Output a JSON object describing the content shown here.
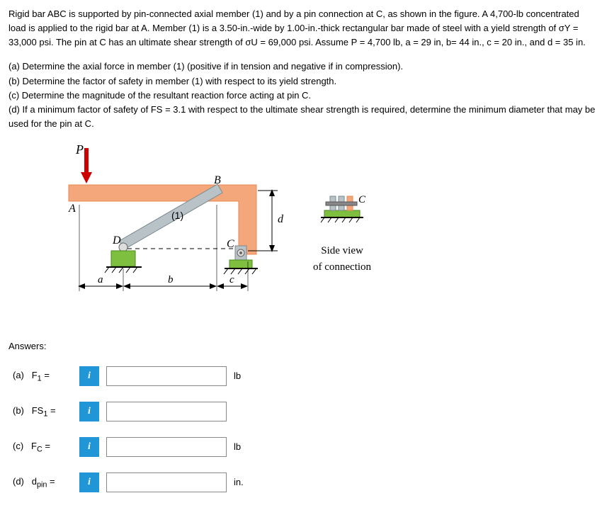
{
  "problem": {
    "p1": "Rigid bar ABC is supported by pin-connected axial member (1) and by a pin connection at C, as shown in the figure. A 4,700-lb concentrated load is applied to the rigid bar at A. Member (1) is a 3.50-in.-wide by 1.00-in.-thick rectangular bar made of steel with a yield strength of σY  =  33,000 psi. The pin at C has an ultimate shear strength of σU  =   69,000 psi. Assume P = 4,700 lb, a = 29 in, b= 44 in., c = 20 in., and d = 35 in.",
    "qa": "(a) Determine the axial force in member (1) (positive if in tension and negative if in compression).",
    "qb": "(b) Determine the factor of safety in member (1) with respect to its yield strength.",
    "qc": "(c) Determine the magnitude of the resultant reaction force acting at pin C.",
    "qd": "(d) If a minimum factor of safety of FS = 3.1 with respect to the ultimate shear strength is required, determine the minimum diameter that may be used for the pin at C."
  },
  "figure": {
    "labels": {
      "P": "P",
      "A": "A",
      "B": "B",
      "C": "C",
      "D": "D",
      "one": "(1)",
      "a": "a",
      "b": "b",
      "c": "c",
      "d": "d"
    },
    "colors": {
      "bar": "#f4a77a",
      "bar_stroke": "#e88a55",
      "member": "#b9c3c7",
      "member_stroke": "#7a8a90",
      "support": "#7fbf3f",
      "pin": "#dddddd",
      "arrow": "#cc0000",
      "dim": "#000000"
    }
  },
  "sideview": {
    "label_c": "C",
    "text1": "Side view",
    "text2": "of connection"
  },
  "answers": {
    "title": "Answers:",
    "rows": [
      {
        "label_html": "(a)&nbsp;&nbsp;&nbsp;F<sub>1</sub> =",
        "unit": "lb",
        "value": ""
      },
      {
        "label_html": "(b)&nbsp;&nbsp;&nbsp;FS<sub>1</sub> =",
        "unit": "",
        "value": ""
      },
      {
        "label_html": "(c)&nbsp;&nbsp;&nbsp;F<sub>C</sub> =",
        "unit": "lb",
        "value": ""
      },
      {
        "label_html": "(d)&nbsp;&nbsp;&nbsp;d<sub>pin</sub> =",
        "unit": "in.",
        "value": ""
      }
    ],
    "info_icon": "i"
  }
}
